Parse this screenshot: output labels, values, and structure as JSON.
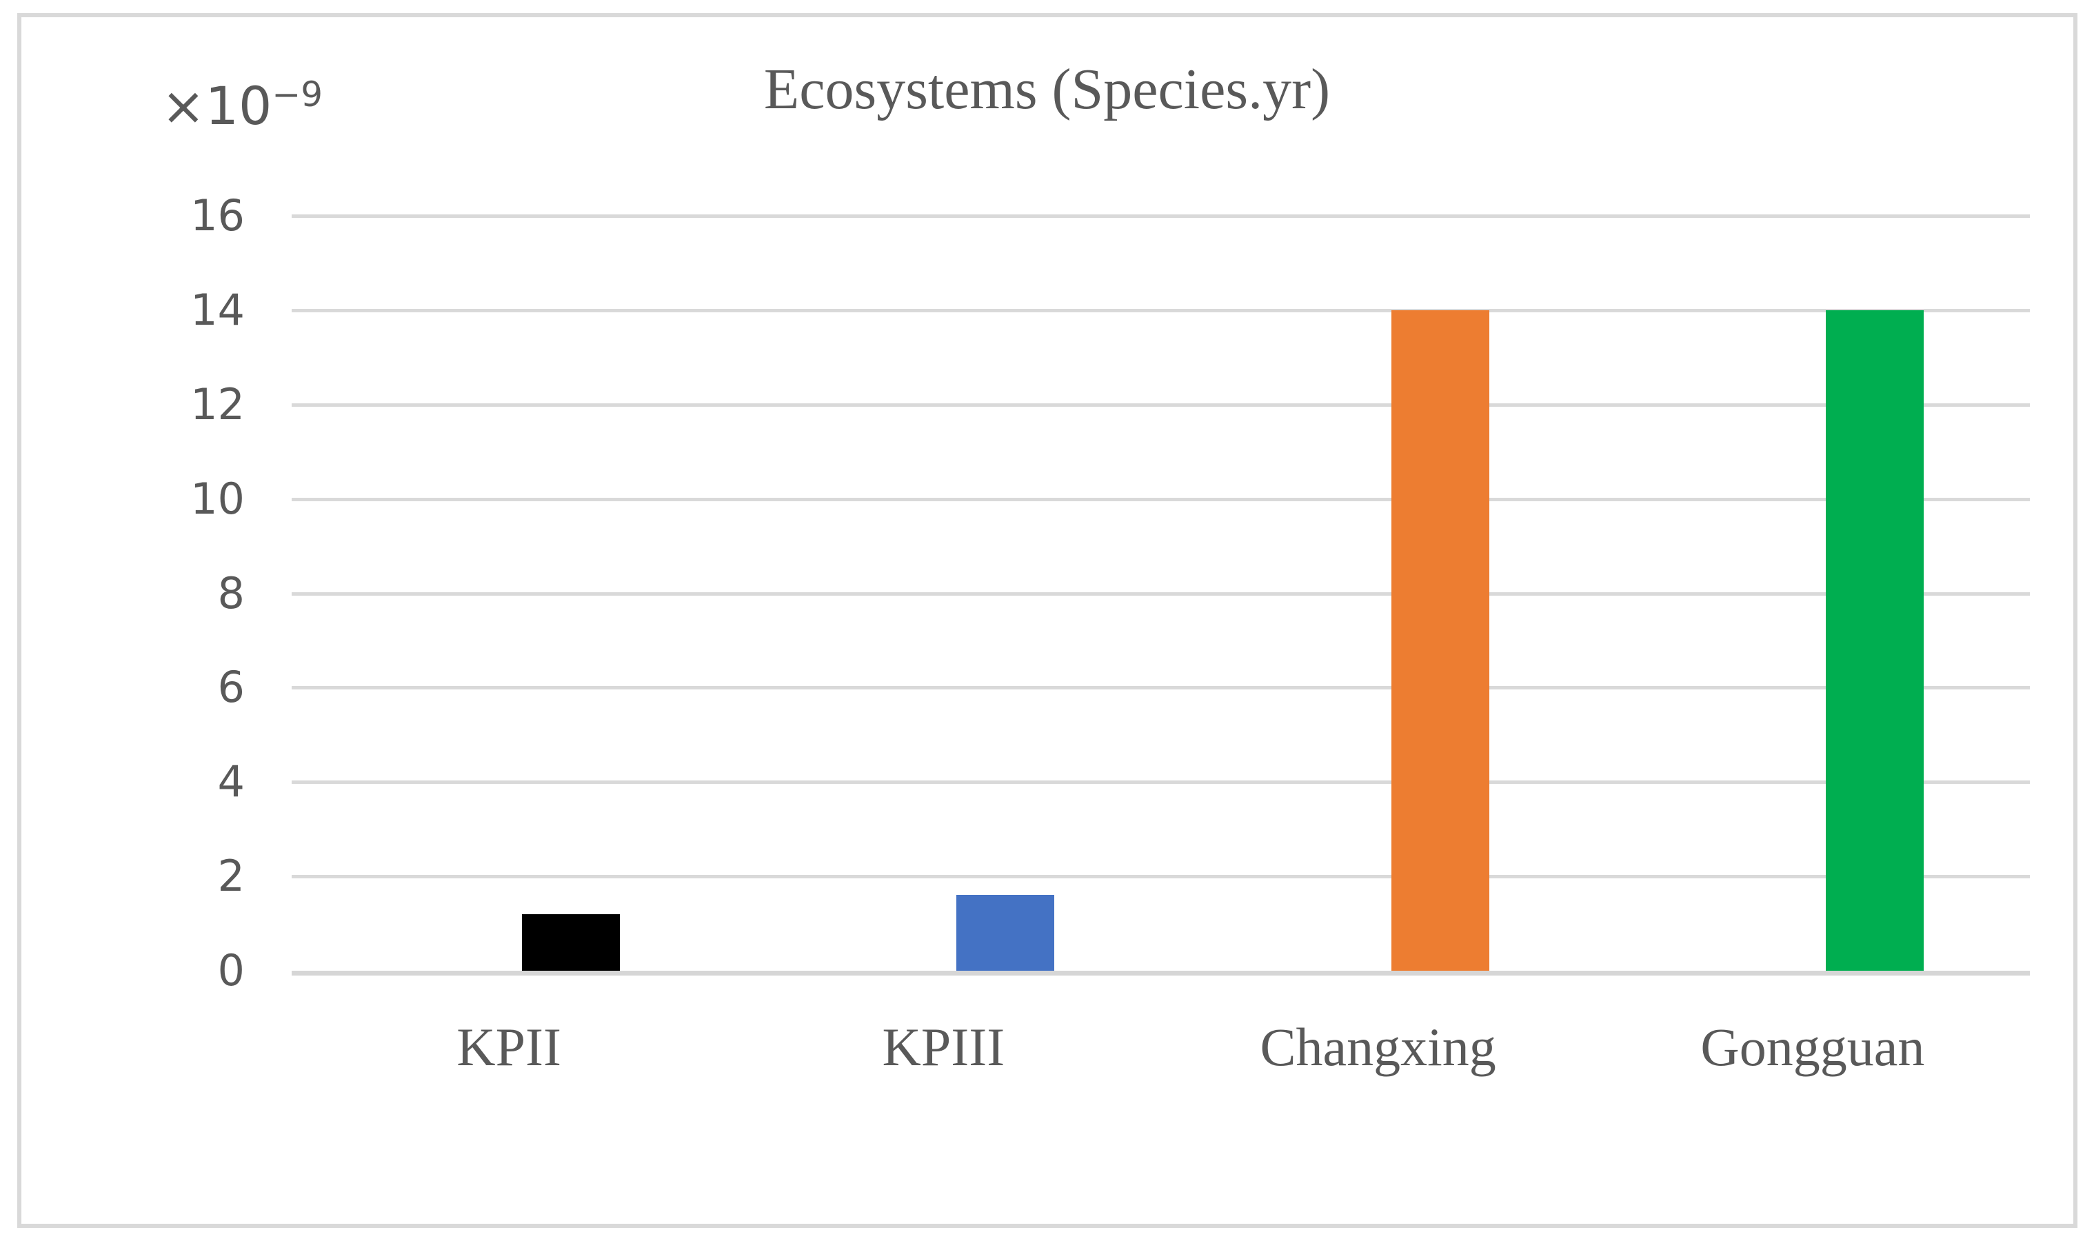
{
  "chart_data": {
    "type": "bar",
    "title": "Ecosystems (Species.yr)",
    "categories": [
      "KPII",
      "KPIII",
      "Changxing",
      "Gongguan"
    ],
    "values": [
      1.2,
      1.6,
      14,
      14
    ],
    "bar_colors": [
      "#000000",
      "#4472C4",
      "#ED7D31",
      "#00AE50"
    ],
    "ylim": [
      0,
      16
    ],
    "yticks": [
      0,
      2,
      4,
      6,
      8,
      10,
      12,
      14,
      16
    ],
    "ytick_step": 2,
    "y_multiplier_base": "×10",
    "y_multiplier_exponent": "−9",
    "y_multiplier_text": "×10⁻⁹",
    "xlabel": "",
    "ylabel": "",
    "grid": true,
    "legend": false,
    "gridline_color": "#D9D9D9",
    "axis_line_color": "#D6D6D6",
    "text_color": "#595959",
    "frame_color": "#D9D9D9"
  }
}
